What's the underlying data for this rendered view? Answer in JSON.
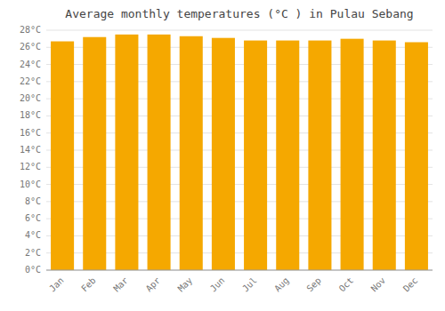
{
  "chart_data": {
    "type": "bar",
    "title": "Average monthly temperatures (°C ) in Pulau Sebang",
    "categories": [
      "Jan",
      "Feb",
      "Mar",
      "Apr",
      "May",
      "Jun",
      "Jul",
      "Aug",
      "Sep",
      "Oct",
      "Nov",
      "Dec"
    ],
    "values": [
      26.7,
      27.2,
      27.5,
      27.5,
      27.3,
      27.1,
      26.8,
      26.8,
      26.8,
      27.0,
      26.8,
      26.6
    ],
    "color": "#F5A800",
    "ylim": [
      0,
      28
    ],
    "yticks": [
      {
        "value": 0,
        "label": "0°C"
      },
      {
        "value": 2,
        "label": "2°C"
      },
      {
        "value": 4,
        "label": "4°C"
      },
      {
        "value": 6,
        "label": "6°C"
      },
      {
        "value": 8,
        "label": "8°C"
      },
      {
        "value": 10,
        "label": "10°C"
      },
      {
        "value": 12,
        "label": "12°C"
      },
      {
        "value": 14,
        "label": "14°C"
      },
      {
        "value": 16,
        "label": "16°C"
      },
      {
        "value": 18,
        "label": "18°C"
      },
      {
        "value": 20,
        "label": "20°C"
      },
      {
        "value": 22,
        "label": "22°C"
      },
      {
        "value": 24,
        "label": "24°C"
      },
      {
        "value": 26,
        "label": "26°C"
      },
      {
        "value": 28,
        "label": "28°C"
      }
    ],
    "grid": true
  }
}
